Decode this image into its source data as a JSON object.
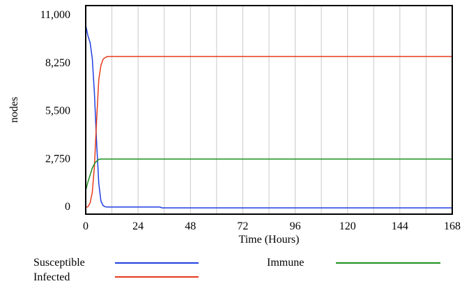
{
  "chart_data": {
    "type": "line",
    "xlabel": "Time (Hours)",
    "ylabel": "nodes",
    "xlim": [
      0,
      168
    ],
    "ylim": [
      0,
      11000
    ],
    "x_ticks": [
      0,
      24,
      48,
      72,
      96,
      120,
      144,
      168
    ],
    "x_tick_labels": [
      "0",
      "24",
      "48",
      "72",
      "96",
      "120",
      "144",
      "168"
    ],
    "y_ticks": [
      0,
      2750,
      5500,
      8250,
      11000
    ],
    "y_tick_labels": [
      "0",
      "2,750",
      "5,500",
      "8,250",
      "11,000"
    ],
    "grid": "vertical",
    "legend_position": "bottom",
    "series": [
      {
        "name": "Susceptible",
        "color": "#1f3fe0",
        "x": [
          0,
          1,
          2,
          3,
          4,
          5,
          6,
          7,
          8,
          9,
          10,
          12,
          16,
          24,
          34,
          35,
          40,
          168
        ],
        "y": [
          10400,
          9800,
          9400,
          8500,
          6500,
          3600,
          1300,
          300,
          50,
          -20,
          -30,
          -30,
          -30,
          -30,
          -30,
          -80,
          -80,
          -80
        ]
      },
      {
        "name": "Infected",
        "color": "#e53a1c",
        "x": [
          0,
          1,
          2,
          3,
          4,
          5,
          6,
          7,
          8,
          9,
          10,
          12,
          16,
          24,
          168
        ],
        "y": [
          -50,
          -20,
          200,
          800,
          2300,
          5000,
          7300,
          8100,
          8450,
          8550,
          8600,
          8600,
          8600,
          8600,
          8600
        ]
      },
      {
        "name": "Immune",
        "color": "#1c8f1c",
        "x": [
          0,
          1,
          2,
          3,
          4,
          5,
          6,
          7,
          8,
          10,
          12,
          24,
          168
        ],
        "y": [
          900,
          1400,
          1800,
          2200,
          2450,
          2600,
          2700,
          2720,
          2720,
          2720,
          2720,
          2720,
          2720
        ]
      }
    ]
  }
}
